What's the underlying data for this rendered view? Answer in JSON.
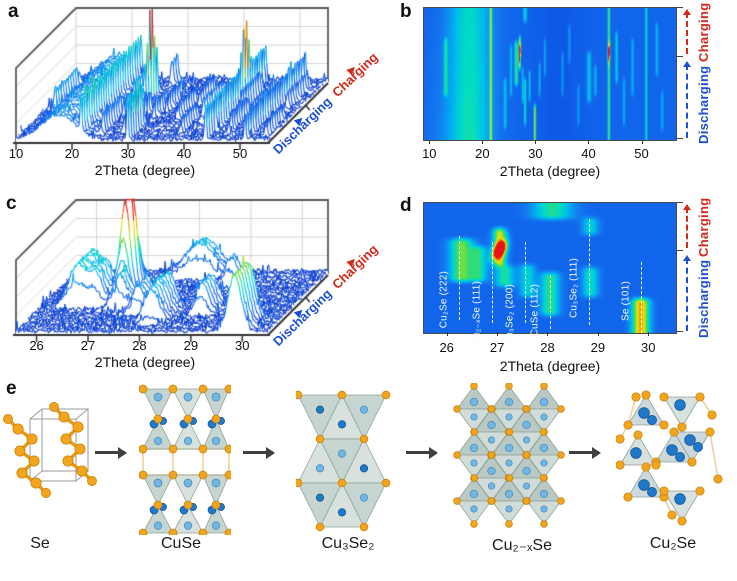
{
  "figure": {
    "panels": {
      "a": {
        "letter": "a"
      },
      "b": {
        "letter": "b"
      },
      "c": {
        "letter": "c"
      },
      "d": {
        "letter": "d"
      },
      "e": {
        "letter": "e"
      }
    },
    "axis_label": "2Theta (degree)",
    "direction_labels": {
      "discharging": "Discharging",
      "charging": "Charging"
    }
  },
  "colors": {
    "vars": {
      "dir-blue": "#1d4fd6",
      "dir-red": "#d42818"
    },
    "colormap_stops": [
      {
        "v": 0.0,
        "hex": "#0a36c8"
      },
      {
        "v": 0.1,
        "hex": "#0d53e6"
      },
      {
        "v": 0.25,
        "hex": "#1479f0"
      },
      {
        "v": 0.4,
        "hex": "#00b4f0"
      },
      {
        "v": 0.52,
        "hex": "#00dcc8"
      },
      {
        "v": 0.62,
        "hex": "#3cdc64"
      },
      {
        "v": 0.72,
        "hex": "#a0e428"
      },
      {
        "v": 0.8,
        "hex": "#f0e400"
      },
      {
        "v": 0.88,
        "hex": "#f69b00"
      },
      {
        "v": 1.0,
        "hex": "#e61414"
      }
    ],
    "atom_se": "#f2a51c",
    "atom_cu_light": "#74b6e2",
    "atom_cu_dark": "#1f78c8",
    "polyhedra": "#b9cac4"
  },
  "peak_sets": {
    "wide": [
      {
        "c": 13.1,
        "w": 0.25,
        "amp": 0.3,
        "t0": 0.3,
        "t1": 0.8
      },
      {
        "c": 17.6,
        "w": 3.0,
        "amp": 0.34,
        "t0": 0.0,
        "t1": 1.0
      },
      {
        "c": 21.6,
        "w": 0.16,
        "amp": 0.48,
        "t0": 0.0,
        "t1": 1.0
      },
      {
        "c": 24.3,
        "w": 0.18,
        "amp": 0.26,
        "t0": 0.05,
        "t1": 0.5
      },
      {
        "c": 25.4,
        "w": 0.16,
        "amp": 0.26,
        "t0": 0.3,
        "t1": 0.75
      },
      {
        "c": 26.4,
        "w": 0.25,
        "amp": 0.45,
        "t0": 0.38,
        "t1": 0.78,
        "phase": "Cu₂Se (222)"
      },
      {
        "c": 27.05,
        "w": 0.14,
        "amp": 0.55,
        "t0": 0.5,
        "t1": 0.82,
        "hot_t": 0.66,
        "hot_amp": 0.75,
        "phase": "Cu₂₋ₓSe (111)"
      },
      {
        "c": 27.6,
        "w": 0.14,
        "amp": 0.28,
        "t0": 0.25,
        "t1": 0.58,
        "phase": "Cu₃Se₂ (200)"
      },
      {
        "c": 28.05,
        "w": 0.16,
        "amp": 0.38,
        "t0": 0.08,
        "t1": 0.5,
        "phase": "CuSe (112)"
      },
      {
        "c": 28.05,
        "w": 0.25,
        "amp": 0.35,
        "t0": 0.86,
        "t1": 1.0
      },
      {
        "c": 28.9,
        "w": 0.14,
        "amp": 0.3,
        "t0": 0.26,
        "t1": 0.56,
        "phase": "Cu₃Se₂ (111)"
      },
      {
        "c": 29.9,
        "w": 0.15,
        "amp": 0.62,
        "t0": 0.0,
        "t1": 0.3,
        "phase": "Se (101)"
      },
      {
        "c": 30.8,
        "w": 0.15,
        "amp": 0.26,
        "t0": 0.3,
        "t1": 0.62
      },
      {
        "c": 31.8,
        "w": 0.15,
        "amp": 0.24,
        "t0": 0.45,
        "t1": 0.8
      },
      {
        "c": 35.1,
        "w": 0.18,
        "amp": 0.2,
        "t0": 0.3,
        "t1": 0.7
      },
      {
        "c": 36.4,
        "w": 0.18,
        "amp": 0.2,
        "t0": 0.55,
        "t1": 0.9
      },
      {
        "c": 38.1,
        "w": 0.18,
        "amp": 0.2,
        "t0": 0.08,
        "t1": 0.45
      },
      {
        "c": 40.1,
        "w": 0.3,
        "amp": 0.3,
        "t0": 0.25,
        "t1": 0.7
      },
      {
        "c": 41.3,
        "w": 0.2,
        "amp": 0.24,
        "t0": 0.3,
        "t1": 0.6
      },
      {
        "c": 43.85,
        "w": 0.16,
        "amp": 0.5,
        "t0": 0.0,
        "t1": 1.0,
        "hot_t": 0.66,
        "hot_amp": 0.72
      },
      {
        "c": 45.3,
        "w": 0.2,
        "amp": 0.3,
        "t0": 0.4,
        "t1": 0.85
      },
      {
        "c": 46.7,
        "w": 0.16,
        "amp": 0.24,
        "t0": 0.08,
        "t1": 0.5
      },
      {
        "c": 48.3,
        "w": 0.2,
        "amp": 0.22,
        "t0": 0.3,
        "t1": 0.8
      },
      {
        "c": 50.9,
        "w": 0.15,
        "amp": 0.38,
        "t0": 0.0,
        "t1": 1.0
      },
      {
        "c": 52.9,
        "w": 0.2,
        "amp": 0.24,
        "t0": 0.45,
        "t1": 0.92
      },
      {
        "c": 53.9,
        "w": 0.18,
        "amp": 0.22,
        "t0": 0.04,
        "t1": 0.4
      }
    ],
    "zoom": [
      {
        "c": 26.3,
        "w": 0.18,
        "amp": 0.5,
        "t0": 0.36,
        "t1": 0.76,
        "phase": "Cu₂Se (222)"
      },
      {
        "c": 26.65,
        "w": 0.12,
        "amp": 0.34,
        "t0": 0.36,
        "t1": 0.7
      },
      {
        "c": 27.05,
        "w": 0.1,
        "amp": 0.6,
        "t0": 0.48,
        "t1": 0.84,
        "hot_t": 0.64,
        "hot_amp": 0.85,
        "phase": "Cu₂₋ₓSe (111)"
      },
      {
        "c": 27.15,
        "w": 0.14,
        "amp": 0.4,
        "t0": 0.32,
        "t1": 0.55
      },
      {
        "c": 27.6,
        "w": 0.12,
        "amp": 0.32,
        "t0": 0.24,
        "t1": 0.56,
        "phase": "Cu₃Se₂ (200)"
      },
      {
        "c": 28.05,
        "w": 0.14,
        "amp": 0.42,
        "t0": 0.1,
        "t1": 0.5,
        "phase": "CuSe (112)"
      },
      {
        "c": 28.1,
        "w": 0.3,
        "amp": 0.4,
        "t0": 0.84,
        "t1": 1.0
      },
      {
        "c": 28.85,
        "w": 0.12,
        "amp": 0.36,
        "t0": 0.24,
        "t1": 0.54,
        "phase": "Cu₃Se₂ (111)"
      },
      {
        "c": 28.85,
        "w": 0.12,
        "amp": 0.32,
        "t0": 0.72,
        "t1": 0.92
      },
      {
        "c": 29.85,
        "w": 0.13,
        "amp": 0.7,
        "t0": 0.0,
        "t1": 0.3,
        "phase": "Se (101)"
      }
    ]
  },
  "chart_data": [
    {
      "id": "a",
      "type": "area",
      "subtype": "3d-waterfall-xrd",
      "xlabel": "2Theta (degree)",
      "xrange": [
        10,
        55
      ],
      "xticks": [
        10,
        20,
        30,
        40,
        50
      ],
      "n_traces": 26,
      "time_axis": "operando scans: discharging (front) then charging (back)",
      "direction_split_t": 0.63,
      "peaks_ref": "wide",
      "amp_scale": 1.0
    },
    {
      "id": "b",
      "type": "heatmap",
      "subtype": "operando-xrd-contour",
      "xlabel": "2Theta (degree)",
      "xrange": [
        9,
        56.5
      ],
      "xticks": [
        10,
        20,
        30,
        40,
        50
      ],
      "time_axis": "bottom→top: discharging then charging",
      "direction_split_t": 0.63,
      "peaks_ref": "wide",
      "base_level": 0.17
    },
    {
      "id": "c",
      "type": "area",
      "subtype": "3d-waterfall-xrd",
      "xlabel": "2Theta (degree)",
      "xrange": [
        25.6,
        30.5
      ],
      "xticks": [
        26,
        27,
        28,
        29,
        30
      ],
      "n_traces": 26,
      "time_axis": "operando scans: discharging (front) then charging (back)",
      "direction_split_t": 0.63,
      "peaks_ref": "zoom",
      "amp_scale": 1.12
    },
    {
      "id": "d",
      "type": "heatmap",
      "subtype": "operando-xrd-contour",
      "xlabel": "2Theta (degree)",
      "xrange": [
        25.55,
        30.55
      ],
      "xticks": [
        26,
        27,
        28,
        29,
        30
      ],
      "time_axis": "bottom→top: discharging then charging",
      "direction_split_t": 0.63,
      "peaks_ref": "zoom",
      "base_level": 0.17,
      "annotations": [
        {
          "text": "Cu₂Se (222)",
          "x": 26.25,
          "line_top": 0.25,
          "line_h": 0.65,
          "label_center": 0.52
        },
        {
          "text": "Cu₂₋ₓSe (111)",
          "x": 26.9,
          "line_top": 0.3,
          "line_h": 0.62,
          "label_center": 0.6
        },
        {
          "text": "Cu₃Se₂ (200)",
          "x": 27.55,
          "line_top": 0.3,
          "line_h": 0.62,
          "label_center": 0.62
        },
        {
          "text": "CuSe (112)",
          "x": 28.05,
          "line_top": 0.55,
          "line_h": 0.42,
          "label_center": 0.62
        },
        {
          "text": "Cu₃Se₂ (111)",
          "x": 28.82,
          "line_top": 0.12,
          "line_h": 0.82,
          "label_center": 0.42
        },
        {
          "text": "Se (101)",
          "x": 29.85,
          "line_top": 0.45,
          "line_h": 0.55,
          "label_center": 0.6
        }
      ]
    }
  ],
  "structures": {
    "items": [
      {
        "label": "Se"
      },
      {
        "label": "CuSe"
      },
      {
        "label": "Cu₃Se₂"
      },
      {
        "label": "Cu₂₋ₓSe"
      },
      {
        "label": "Cu₂Se"
      }
    ]
  }
}
